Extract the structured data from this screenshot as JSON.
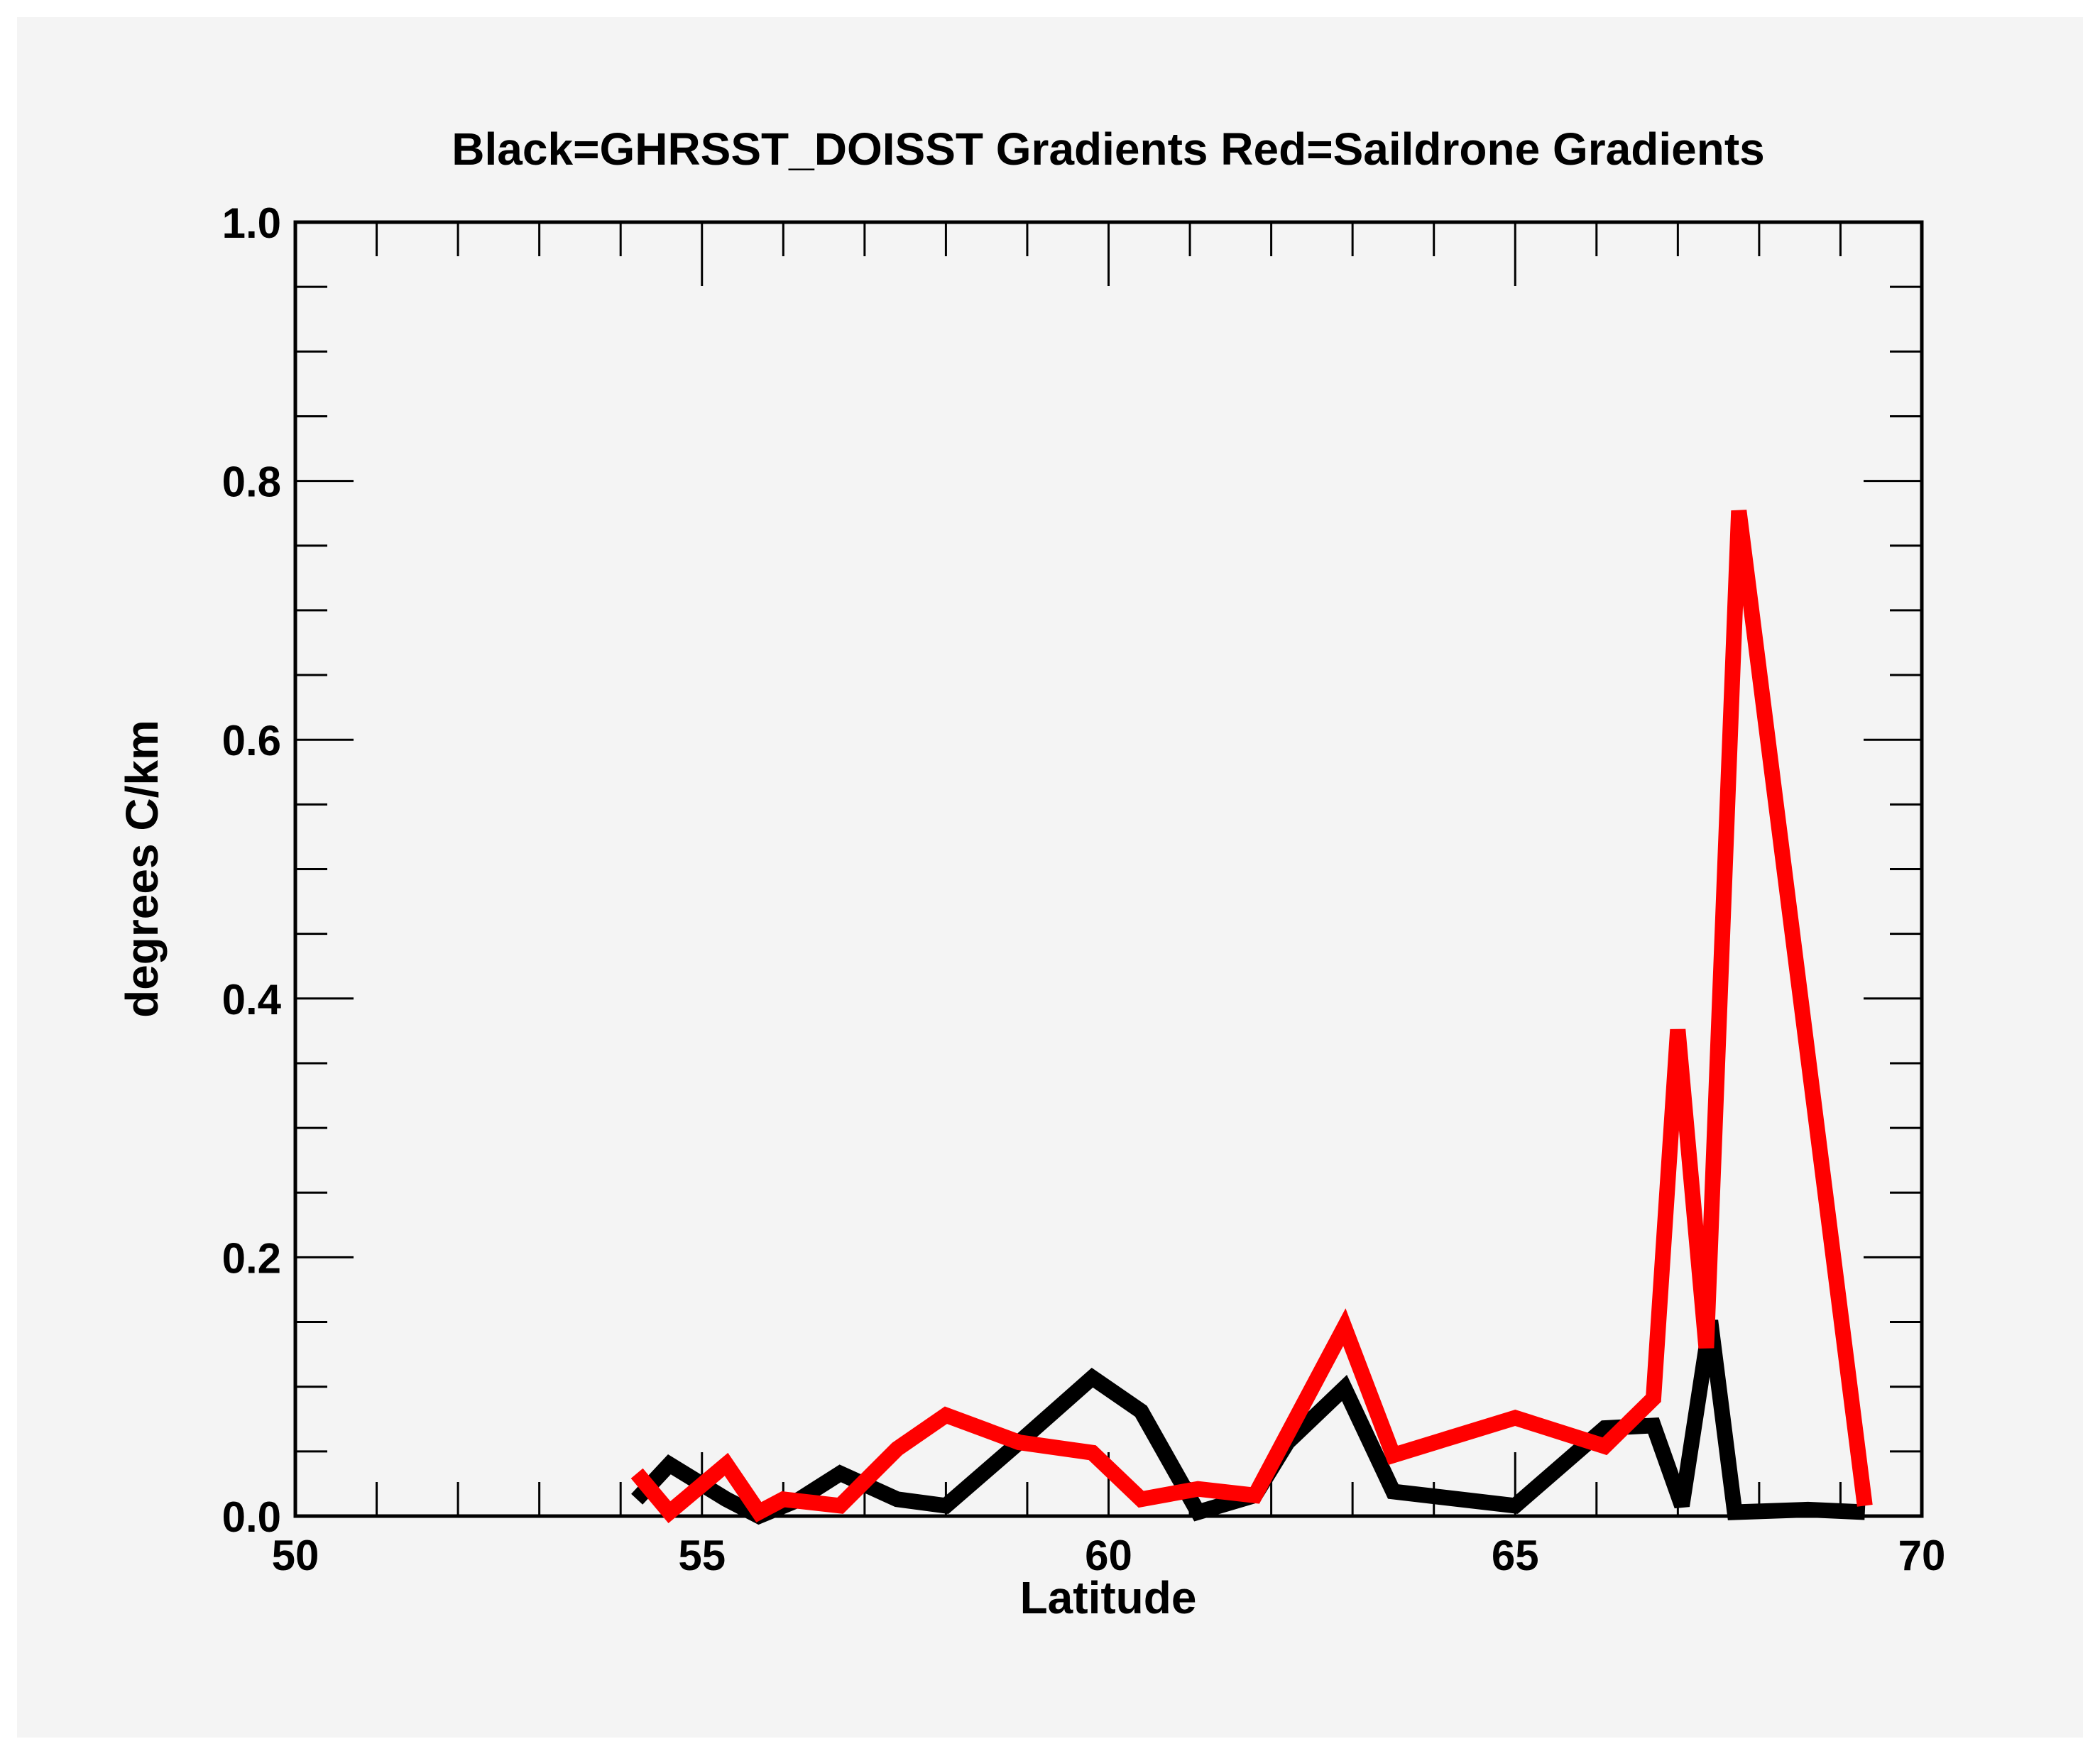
{
  "chart_data": {
    "type": "line",
    "title": "Black=GHRSST_DOISST Gradients Red=Saildrone Gradients",
    "xlabel": "Latitude",
    "ylabel": "degrees C/km",
    "xlim": [
      50,
      70
    ],
    "ylim": [
      0.0,
      1.0
    ],
    "xticks": [
      50,
      55,
      60,
      65,
      70
    ],
    "xtick_labels": [
      "50",
      "55",
      "60",
      "65",
      "70"
    ],
    "yticks": [
      0.0,
      0.2,
      0.4,
      0.6,
      0.8,
      1.0
    ],
    "ytick_labels": [
      "0.0",
      "0.2",
      "0.4",
      "0.6",
      "0.8",
      "1.0"
    ],
    "x_minor_step": 1,
    "y_minor_step": 0.05,
    "grid": false,
    "legend": "none (colors described in title)",
    "series": [
      {
        "name": "GHRSST_DOISST Gradients",
        "color": "#000000",
        "x": [
          54.2,
          54.6,
          55.3,
          55.7,
          56.2,
          56.7,
          57.4,
          58.0,
          58.9,
          59.8,
          60.4,
          61.1,
          61.8,
          62.2,
          62.9,
          63.5,
          65.0,
          66.1,
          66.7,
          67.05,
          67.4,
          67.7,
          68.6,
          69.3
        ],
        "y": [
          0.013,
          0.04,
          0.013,
          0.0,
          0.013,
          0.033,
          0.013,
          0.008,
          0.057,
          0.107,
          0.081,
          0.003,
          0.016,
          0.057,
          0.099,
          0.019,
          0.008,
          0.068,
          0.07,
          0.008,
          0.151,
          0.003,
          0.005,
          0.003
        ]
      },
      {
        "name": "Saildrone Gradients",
        "color": "#ff0000",
        "x": [
          54.2,
          54.6,
          55.3,
          55.7,
          56.0,
          56.7,
          57.4,
          58.0,
          58.9,
          59.8,
          60.4,
          61.1,
          61.8,
          62.9,
          63.5,
          65.0,
          66.1,
          66.7,
          67.0,
          67.35,
          67.75,
          69.3
        ],
        "y": [
          0.033,
          0.003,
          0.04,
          0.003,
          0.013,
          0.008,
          0.052,
          0.078,
          0.057,
          0.049,
          0.013,
          0.021,
          0.016,
          0.146,
          0.047,
          0.076,
          0.054,
          0.091,
          0.376,
          0.13,
          0.777,
          0.008
        ]
      }
    ]
  },
  "colors": {
    "background": "#f4f4f4",
    "page": "#ffffff",
    "axes": "#000000"
  }
}
